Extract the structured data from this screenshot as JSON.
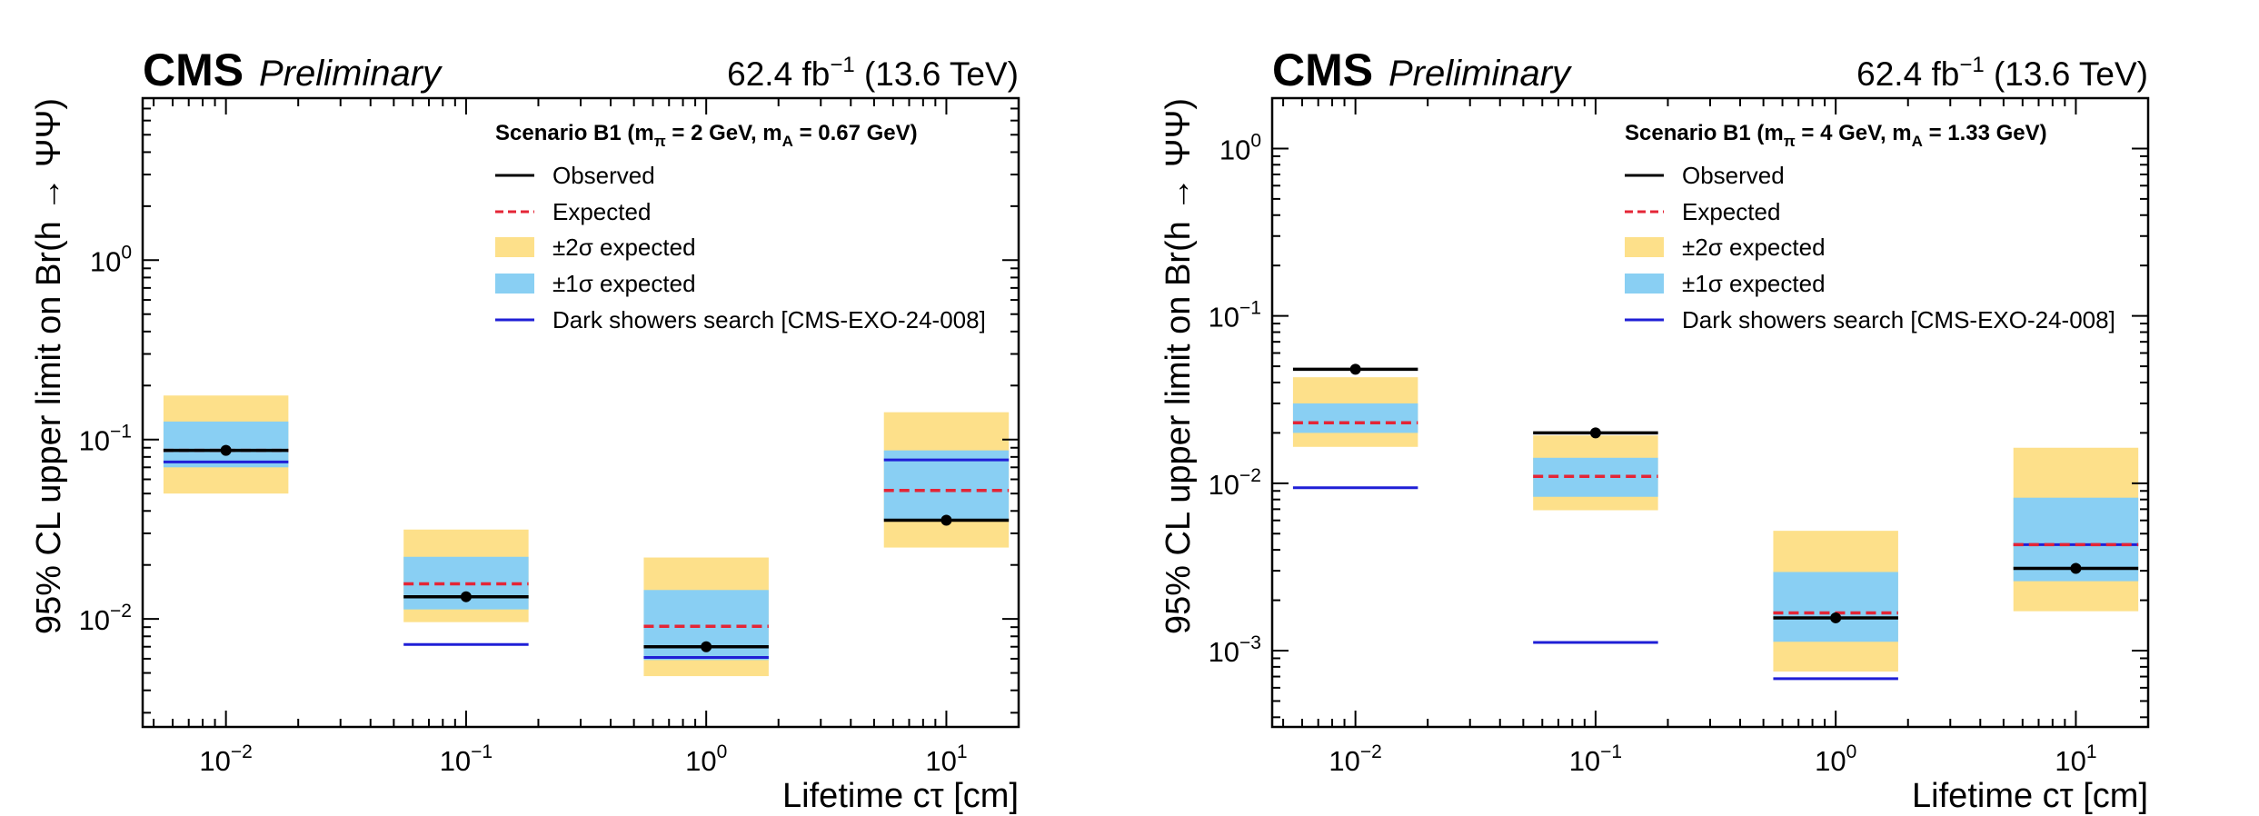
{
  "chart_data": [
    {
      "type": "bar",
      "experiment": "CMS",
      "status": "Preliminary",
      "lumi": "62.4 fb",
      "lumi_exp": "−1",
      "energy": "(13.6 TeV)",
      "ylabel": "95% CL upper limit on Br(h → ΨΨ)",
      "xlabel": "Lifetime cτ [cm]",
      "xscale": "log",
      "yscale": "log",
      "xlim": [
        0.0045,
        20
      ],
      "ylim": [
        0.0025,
        8.0
      ],
      "x_tick_labels": [
        [
          "10",
          "−2"
        ],
        [
          "10",
          "−1"
        ],
        [
          "10",
          "0"
        ],
        [
          "10",
          "1"
        ]
      ],
      "x_tick_values": [
        0.01,
        0.1,
        1,
        10
      ],
      "y_tick_labels": [
        [
          "10",
          "−2"
        ],
        [
          "10",
          "−1"
        ],
        [
          "10",
          "0"
        ]
      ],
      "y_tick_values": [
        0.01,
        0.1,
        1
      ],
      "legend": {
        "title": "Scenario B1 (m",
        "title_sub1": "π",
        "title_mid": " = 2 GeV, m",
        "title_sub2": "A",
        "title_end": " = 0.67 GeV)",
        "entries": [
          "Observed",
          "Expected",
          "±2σ expected",
          "±1σ expected",
          "Dark showers search [CMS-EXO-24-008]"
        ]
      },
      "points": [
        {
          "ctau": 0.01,
          "observed": 0.087,
          "expected": 0.087,
          "sigma1": [
            0.07,
            0.126
          ],
          "sigma2": [
            0.05,
            0.176
          ],
          "dark_showers": 0.075
        },
        {
          "ctau": 0.1,
          "observed": 0.0133,
          "expected": 0.0157,
          "sigma1": [
            0.0113,
            0.0222
          ],
          "sigma2": [
            0.0096,
            0.0315
          ],
          "dark_showers": 0.0072
        },
        {
          "ctau": 1,
          "observed": 0.007,
          "expected": 0.0091,
          "sigma1": [
            0.0059,
            0.0145
          ],
          "sigma2": [
            0.0048,
            0.022
          ],
          "dark_showers": 0.0061
        },
        {
          "ctau": 10,
          "observed": 0.0355,
          "expected": 0.052,
          "sigma1": [
            0.036,
            0.087
          ],
          "sigma2": [
            0.025,
            0.142
          ],
          "dark_showers": 0.077
        }
      ],
      "colors": {
        "observed": "#000000",
        "expected": "#e42536",
        "sigma2": "#fde08a",
        "sigma1": "#89cff3",
        "dark_showers": "#1f1fd6"
      }
    },
    {
      "type": "bar",
      "experiment": "CMS",
      "status": "Preliminary",
      "lumi": "62.4 fb",
      "lumi_exp": "−1",
      "energy": "(13.6 TeV)",
      "ylabel": "95% CL upper limit on Br(h → ΨΨ)",
      "xlabel": "Lifetime cτ [cm]",
      "xscale": "log",
      "yscale": "log",
      "xlim": [
        0.0045,
        20
      ],
      "ylim": [
        0.00035,
        2.0
      ],
      "x_tick_labels": [
        [
          "10",
          "−2"
        ],
        [
          "10",
          "−1"
        ],
        [
          "10",
          "0"
        ],
        [
          "10",
          "1"
        ]
      ],
      "x_tick_values": [
        0.01,
        0.1,
        1,
        10
      ],
      "y_tick_labels": [
        [
          "10",
          "−3"
        ],
        [
          "10",
          "−2"
        ],
        [
          "10",
          "−1"
        ],
        [
          "10",
          "0"
        ]
      ],
      "y_tick_values": [
        0.001,
        0.01,
        0.1,
        1
      ],
      "legend": {
        "title": "Scenario B1 (m",
        "title_sub1": "π",
        "title_mid": " = 4 GeV, m",
        "title_sub2": "A",
        "title_end": " = 1.33 GeV)",
        "entries": [
          "Observed",
          "Expected",
          "±2σ expected",
          "±1σ expected",
          "Dark showers search [CMS-EXO-24-008]"
        ]
      },
      "points": [
        {
          "ctau": 0.01,
          "observed": 0.048,
          "expected": 0.023,
          "sigma1": [
            0.02,
            0.03
          ],
          "sigma2": [
            0.0165,
            0.043
          ],
          "dark_showers": 0.0094
        },
        {
          "ctau": 0.1,
          "observed": 0.02,
          "expected": 0.011,
          "sigma1": [
            0.0083,
            0.0142
          ],
          "sigma2": [
            0.0069,
            0.0193
          ],
          "dark_showers": 0.00112
        },
        {
          "ctau": 1,
          "observed": 0.00157,
          "expected": 0.00168,
          "sigma1": [
            0.00113,
            0.00295
          ],
          "sigma2": [
            0.00075,
            0.0052
          ],
          "dark_showers": 0.00068
        },
        {
          "ctau": 10,
          "observed": 0.0031,
          "expected": 0.0043,
          "sigma1": [
            0.0026,
            0.0082
          ],
          "sigma2": [
            0.00172,
            0.0163
          ],
          "dark_showers": 0.0043
        }
      ],
      "colors": {
        "observed": "#000000",
        "expected": "#e42536",
        "sigma2": "#fde08a",
        "sigma1": "#89cff3",
        "dark_showers": "#1f1fd6"
      }
    }
  ]
}
